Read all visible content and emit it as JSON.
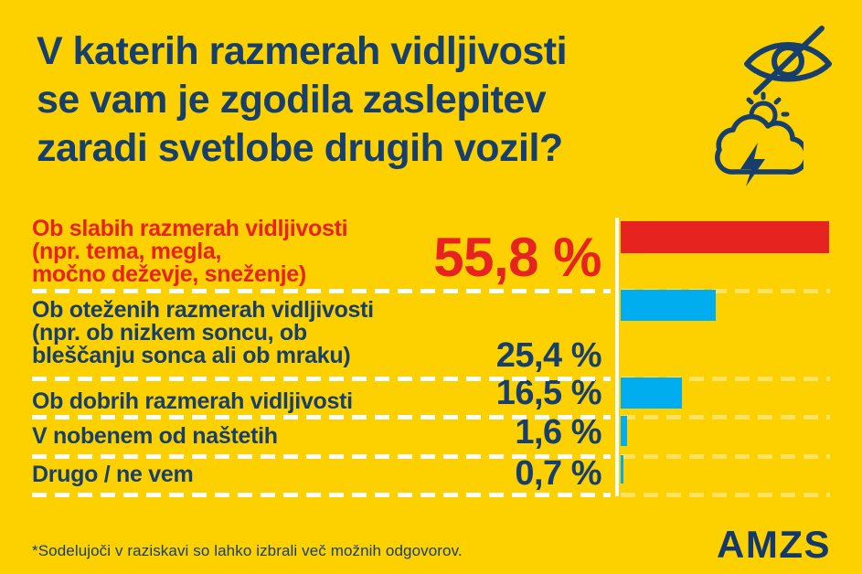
{
  "title_lines": [
    "V katerih razmerah vidljivosti",
    "se vam je zgodila zaslepitev",
    "zaradi svetlobe drugih vozil?"
  ],
  "chart_data": {
    "type": "bar",
    "orientation": "horizontal",
    "title": "V katerih razmerah vidljivosti se vam je zgodila zaslepitev zaradi svetlobe drugih vozil?",
    "categories": [
      "Ob slabih razmerah vidljivosti (npr. tema, megla, močno deževje, sneženje)",
      "Ob oteženih razmerah vidljivosti (npr. ob nizkem soncu, ob bleščanju sonca ali ob mraku)",
      "Ob dobrih razmerah vidljivosti",
      "V nobenem od naštetih",
      "Drugo / ne vem"
    ],
    "values": [
      55.8,
      25.4,
      16.5,
      1.6,
      0.7
    ],
    "value_labels": [
      "55,8 %",
      "25,4 %",
      "16,5 %",
      "1,6 %",
      "0,7 %"
    ],
    "bar_colors": [
      "#E6231F",
      "#00AEEF",
      "#00AEEF",
      "#00AEEF",
      "#00AEEF"
    ],
    "xlim": [
      0,
      56
    ],
    "grid": "dashed white row separators",
    "legend": "none"
  },
  "rows": [
    {
      "label_lines": [
        "Ob slabih razmerah vidljivosti",
        "(npr. tema, megla,",
        "močno deževje, sneženje)"
      ],
      "value_label": "55,8 %",
      "value": 55.8,
      "emphasis_color": "#E6231F"
    },
    {
      "label_lines": [
        "Ob oteženih razmerah vidljivosti",
        "(npr. ob nizkem soncu, ob",
        "bleščanju sonca ali ob mraku)"
      ],
      "value_label": "25,4 %",
      "value": 25.4
    },
    {
      "label_lines": [
        "Ob dobrih razmerah vidljivosti"
      ],
      "value_label": "16,5 %",
      "value": 16.5
    },
    {
      "label_lines": [
        "V nobenem od naštetih"
      ],
      "value_label": "1,6 %",
      "value": 1.6
    },
    {
      "label_lines": [
        "Drugo / ne vem"
      ],
      "value_label": "0,7 %",
      "value": 0.7
    }
  ],
  "icons": [
    {
      "name": "visibility-off-icon"
    },
    {
      "name": "storm-cloud-sun-icon"
    }
  ],
  "footer": {
    "note": "*Sodelujoči v raziskavi so lahko izbrali več možnih odgovorov.",
    "logo_text": "AMZS"
  },
  "colors": {
    "background": "#FDD000",
    "navy": "#173F6E",
    "red": "#E6231F",
    "cyan": "#00AEEF",
    "separator": "#FFFFFF"
  }
}
